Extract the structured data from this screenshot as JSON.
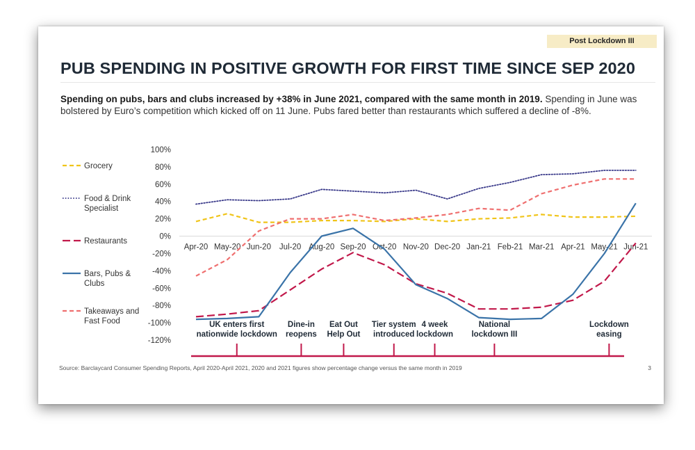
{
  "badge": "Post Lockdown III",
  "title": "PUB SPENDING IN POSITIVE GROWTH FOR FIRST TIME SINCE SEP 2020",
  "subtitle_bold": "Spending on pubs, bars and clubs increased by +38% in June 2021, compared with the same month in 2019.",
  "subtitle_rest": " Spending in June was bolstered by Euro’s competition which kicked off on 11 June.  Pubs fared better than restaurants which suffered a decline of  -8%.",
  "source": "Source: Barclaycard Consumer Spending Reports, April 2020-April 2021, 2020 and 2021 figures show percentage change versus the same month in 2019",
  "page_number": "3",
  "chart_data": {
    "type": "line",
    "x": [
      "Apr-20",
      "May-20",
      "Jun-20",
      "Jul-20",
      "Aug-20",
      "Sep-20",
      "Oct-20",
      "Nov-20",
      "Dec-20",
      "Jan-21",
      "Feb-21",
      "Mar-21",
      "Apr-21",
      "May-21",
      "Jun-21"
    ],
    "ylim": [
      -120,
      100
    ],
    "yticks": [
      "100%",
      "80%",
      "60%",
      "40%",
      "20%",
      "0%",
      "-20%",
      "-40%",
      "-60%",
      "-80%",
      "-100%",
      "-120%"
    ],
    "ytick_values": [
      100,
      80,
      60,
      40,
      20,
      0,
      -20,
      -40,
      -60,
      -80,
      -100,
      -120
    ],
    "series": [
      {
        "name": "Grocery",
        "color": "#f0c419",
        "dash": "dashed",
        "values": [
          17,
          26,
          16,
          16,
          18,
          18,
          17,
          20,
          17,
          20,
          21,
          25,
          22,
          22,
          23
        ]
      },
      {
        "name": "Food & Drink Specialist",
        "color": "#3a3a8a",
        "dash": "dotted",
        "values": [
          37,
          42,
          41,
          43,
          54,
          52,
          50,
          53,
          43,
          55,
          62,
          71,
          72,
          76,
          76
        ]
      },
      {
        "name": "Restaurants",
        "color": "#c1184a",
        "dash": "longdash",
        "values": [
          -93,
          -90,
          -86,
          -62,
          -38,
          -19,
          -33,
          -55,
          -66,
          -84,
          -84,
          -82,
          -74,
          -52,
          -8
        ]
      },
      {
        "name": "Bars, Pubs & Clubs",
        "color": "#3a73a8",
        "dash": "solid",
        "values": [
          -96,
          -95,
          -93,
          -42,
          0,
          9,
          -15,
          -56,
          -72,
          -94,
          -96,
          -95,
          -67,
          -20,
          38
        ]
      },
      {
        "name": "Takeaways and Fast Food",
        "color": "#ef6f6f",
        "dash": "dashed",
        "values": [
          -46,
          -27,
          6,
          20,
          20,
          25,
          18,
          21,
          25,
          32,
          30,
          49,
          59,
          66,
          66
        ]
      }
    ],
    "legend": [
      {
        "label": "Grocery",
        "series": 0
      },
      {
        "label": "Food & Drink\nSpecialist",
        "series": 1
      },
      {
        "label": "Restaurants",
        "series": 2
      },
      {
        "label": "Bars, Pubs &\nClubs",
        "series": 3
      },
      {
        "label": "Takeaways and\nFast Food",
        "series": 4
      }
    ],
    "annotations": [
      {
        "text": "UK enters first\nnationwide lockdown",
        "x_index": 1.3
      },
      {
        "text": "Dine-in\nreopens",
        "x_index": 3.35
      },
      {
        "text": "Eat Out\nHelp Out",
        "x_index": 4.7
      },
      {
        "text": "Tier system\nintroduced",
        "x_index": 6.3
      },
      {
        "text": "4 week\nlockdown",
        "x_index": 7.6
      },
      {
        "text": "National\nlockdown III",
        "x_index": 9.5
      },
      {
        "text": "Lockdown\neasing",
        "x_index": 13.15
      }
    ],
    "legend_position": "left",
    "grid": false
  }
}
